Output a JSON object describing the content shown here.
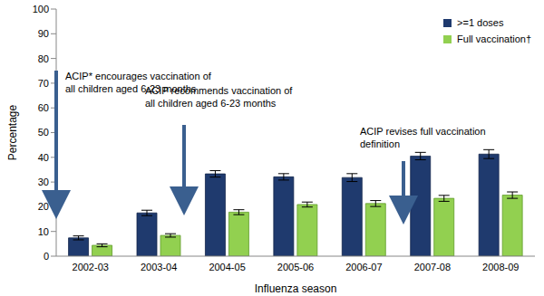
{
  "chart_data": {
    "type": "bar",
    "x_label": "Influenza season",
    "y_label": "Percentage",
    "categories": [
      "2002-03",
      "2003-04",
      "2004-05",
      "2005-06",
      "2006-07",
      "2007-08",
      "2008-09"
    ],
    "series": [
      {
        "name": ">=1 doses",
        "color": "#1f3a6e",
        "values": [
          7.4,
          17.5,
          33.3,
          32.1,
          31.8,
          40.5,
          41.3
        ],
        "error": [
          0.8,
          1.1,
          1.3,
          1.3,
          1.6,
          1.5,
          1.8
        ]
      },
      {
        "name": "Full vaccination†",
        "color": "#92d050",
        "values": [
          4.4,
          8.4,
          17.8,
          20.9,
          21.3,
          23.4,
          24.7
        ],
        "error": [
          0.6,
          0.7,
          1.0,
          1.0,
          1.2,
          1.2,
          1.3
        ]
      }
    ],
    "ylim": [
      0,
      100
    ],
    "yticks": [
      0,
      10,
      20,
      30,
      40,
      50,
      60,
      70,
      80,
      90,
      100
    ],
    "grid": false,
    "legend": "top-right",
    "annotations": [
      {
        "lines": [
          "ACIP* encourages vaccination of",
          "all children aged 6-23 months"
        ]
      },
      {
        "lines": [
          "ACIP recommends vaccination of",
          "all children aged 6-23 months"
        ]
      },
      {
        "lines": [
          "ACIP revises full vaccination",
          "definition"
        ]
      }
    ]
  }
}
